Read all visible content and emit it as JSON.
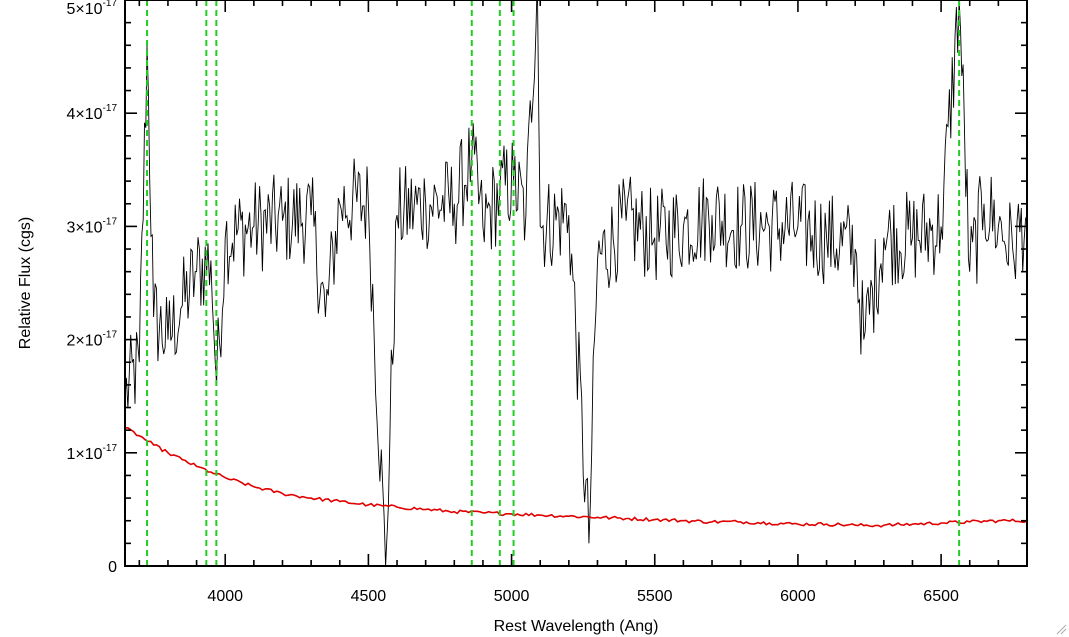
{
  "chart_data": {
    "type": "line",
    "title": "",
    "xlabel": "Rest Wavelength (Ang)",
    "ylabel": "Relative Flux (cgs)",
    "xlim": [
      3650,
      6800
    ],
    "ylim": [
      0,
      5e-17
    ],
    "x_ticks": [
      {
        "value": 4000,
        "label": "4000"
      },
      {
        "value": 4500,
        "label": "4500"
      },
      {
        "value": 5000,
        "label": "5000"
      },
      {
        "value": 5500,
        "label": "5500"
      },
      {
        "value": 6000,
        "label": "6000"
      },
      {
        "value": 6500,
        "label": "6500"
      }
    ],
    "y_ticks": [
      {
        "value": 0,
        "mantissa": "0",
        "exponent": ""
      },
      {
        "value": 1e-17,
        "mantissa": "1×10",
        "exponent": "-17"
      },
      {
        "value": 2e-17,
        "mantissa": "2×10",
        "exponent": "-17"
      },
      {
        "value": 3e-17,
        "mantissa": "3×10",
        "exponent": "-17"
      },
      {
        "value": 4e-17,
        "mantissa": "4×10",
        "exponent": "-17"
      },
      {
        "value": 5e-17,
        "mantissa": "5×10",
        "exponent": "-17"
      }
    ],
    "grid": false,
    "legend": "none",
    "series": [
      {
        "role": "spectrum",
        "color": "#000000",
        "x": [
          3650,
          3700,
          3727,
          3750,
          3800,
          3850,
          3900,
          3950,
          3970,
          4000,
          4100,
          4200,
          4300,
          4350,
          4400,
          4500,
          4560,
          4600,
          4700,
          4800,
          4861,
          4900,
          4959,
          5007,
          5050,
          5090,
          5100,
          5200,
          5270,
          5300,
          5400,
          5500,
          5600,
          5700,
          5800,
          5900,
          6000,
          6100,
          6200,
          6230,
          6300,
          6400,
          6500,
          6563,
          6600,
          6650,
          6700,
          6750,
          6800
        ],
        "y": [
          1.5e-17,
          1.8e-17,
          4.6e-17,
          2.2e-17,
          2e-17,
          2.3e-17,
          2.6e-17,
          2.7e-17,
          1.6e-17,
          2.9e-17,
          3e-17,
          3.05e-17,
          3.1e-17,
          2.2e-17,
          3.2e-17,
          3.2e-17,
          0.0,
          3.1e-17,
          3.2e-17,
          3.2e-17,
          3.6e-17,
          3e-17,
          3.3e-17,
          3.4e-17,
          3.1e-17,
          5.2e-17,
          3e-17,
          3.1e-17,
          2e-18,
          2.7e-17,
          3.05e-17,
          2.9e-17,
          3e-17,
          3.1e-17,
          3e-17,
          3e-17,
          3e-17,
          2.9e-17,
          2.8e-17,
          2e-17,
          2.9e-17,
          2.9e-17,
          3e-17,
          5e-17,
          2.6e-17,
          3.2e-17,
          3e-17,
          2.8e-17,
          3.1e-17
        ]
      },
      {
        "role": "model",
        "color": "#e00000",
        "x": [
          3650,
          3700,
          3750,
          3800,
          3850,
          3900,
          3950,
          4000,
          4100,
          4200,
          4300,
          4400,
          4500,
          4600,
          4700,
          4800,
          4900,
          5000,
          5100,
          5200,
          5300,
          5400,
          5500,
          5600,
          5700,
          5800,
          5900,
          6000,
          6100,
          6200,
          6300,
          6400,
          6500,
          6600,
          6700,
          6800
        ],
        "y": [
          1.22e-17,
          1.15e-17,
          1.07e-17,
          1e-17,
          9.4e-18,
          8.8e-18,
          8.3e-18,
          7.8e-18,
          7e-18,
          6.4e-18,
          6e-18,
          5.7e-18,
          5.4e-18,
          5.2e-18,
          5e-18,
          4.8e-18,
          4.7e-18,
          4.6e-18,
          4.5e-18,
          4.4e-18,
          4.3e-18,
          4.2e-18,
          4.1e-18,
          4e-18,
          3.9e-18,
          3.9e-18,
          3.8e-18,
          3.7e-18,
          3.7e-18,
          3.6e-18,
          3.6e-18,
          3.7e-18,
          3.8e-18,
          3.9e-18,
          4e-18,
          4e-18
        ]
      }
    ],
    "vertical_markers": {
      "color": "#22cc22",
      "style": "dashed",
      "x": [
        3727,
        3934,
        3969,
        4861,
        4959,
        5007,
        6563
      ]
    }
  }
}
